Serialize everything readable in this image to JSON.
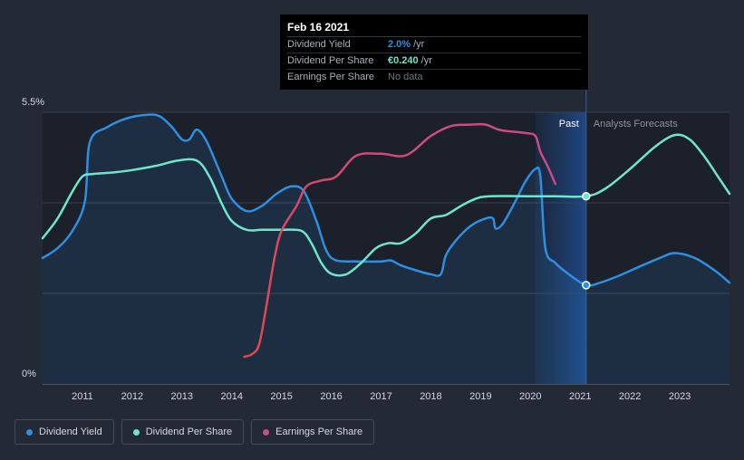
{
  "tooltip": {
    "date": "Feb 16 2021",
    "rows": [
      {
        "label": "Dividend Yield",
        "value": "2.0%",
        "unit": "/yr",
        "color": "#2e8fe0"
      },
      {
        "label": "Dividend Per Share",
        "value": "€0.240",
        "unit": "/yr",
        "color": "#6ee5cc"
      },
      {
        "label": "Earnings Per Share",
        "value": "No data",
        "unit": "",
        "color": "#6d7480"
      }
    ]
  },
  "regions": {
    "past": "Past",
    "forecast": "Analysts Forecasts"
  },
  "legend": [
    {
      "label": "Dividend Yield",
      "color": "#2e8fe0"
    },
    {
      "label": "Dividend Per Share",
      "color": "#6ee5cc"
    },
    {
      "label": "Earnings Per Share",
      "color": "#c94b8c"
    }
  ],
  "chart_data": {
    "type": "line",
    "title": "",
    "xlabel": "",
    "ylabel": "",
    "x_ticks": [
      "2011",
      "2012",
      "2013",
      "2014",
      "2015",
      "2016",
      "2017",
      "2018",
      "2019",
      "2020",
      "2021",
      "2022",
      "2023"
    ],
    "y_labels": [
      "5.5%",
      "0%"
    ],
    "xlim": [
      2010.2,
      2024.0
    ],
    "ylim": [
      0,
      5.5
    ],
    "past_start": 2020.1,
    "current": 2021.12,
    "series": [
      {
        "name": "Dividend Yield",
        "unit": "%",
        "color": "#2e8fe0",
        "area": true,
        "points": [
          [
            2010.2,
            2.55
          ],
          [
            2010.5,
            2.75
          ],
          [
            2010.8,
            3.1
          ],
          [
            2011.05,
            3.7
          ],
          [
            2011.15,
            4.9
          ],
          [
            2011.5,
            5.2
          ],
          [
            2011.9,
            5.38
          ],
          [
            2012.3,
            5.45
          ],
          [
            2012.55,
            5.42
          ],
          [
            2012.8,
            5.2
          ],
          [
            2013.0,
            4.95
          ],
          [
            2013.15,
            4.95
          ],
          [
            2013.3,
            5.15
          ],
          [
            2013.5,
            4.9
          ],
          [
            2013.8,
            4.2
          ],
          [
            2014.0,
            3.75
          ],
          [
            2014.3,
            3.5
          ],
          [
            2014.6,
            3.6
          ],
          [
            2014.9,
            3.85
          ],
          [
            2015.2,
            4.0
          ],
          [
            2015.45,
            3.9
          ],
          [
            2015.7,
            3.3
          ],
          [
            2015.9,
            2.7
          ],
          [
            2016.1,
            2.5
          ],
          [
            2016.5,
            2.48
          ],
          [
            2017.0,
            2.48
          ],
          [
            2017.2,
            2.5
          ],
          [
            2017.4,
            2.4
          ],
          [
            2017.7,
            2.3
          ],
          [
            2018.0,
            2.22
          ],
          [
            2018.2,
            2.22
          ],
          [
            2018.3,
            2.6
          ],
          [
            2018.5,
            2.9
          ],
          [
            2018.8,
            3.2
          ],
          [
            2019.1,
            3.35
          ],
          [
            2019.25,
            3.35
          ],
          [
            2019.3,
            3.15
          ],
          [
            2019.45,
            3.25
          ],
          [
            2019.7,
            3.7
          ],
          [
            2019.9,
            4.1
          ],
          [
            2020.1,
            4.35
          ],
          [
            2020.2,
            4.2
          ],
          [
            2020.3,
            2.75
          ],
          [
            2020.5,
            2.45
          ],
          [
            2020.8,
            2.2
          ],
          [
            2021.12,
            2.0
          ],
          [
            2021.4,
            2.05
          ],
          [
            2021.8,
            2.2
          ],
          [
            2022.2,
            2.38
          ],
          [
            2022.6,
            2.55
          ],
          [
            2022.9,
            2.65
          ],
          [
            2023.3,
            2.55
          ],
          [
            2023.7,
            2.3
          ],
          [
            2024.0,
            2.05
          ]
        ]
      },
      {
        "name": "Dividend Per Share",
        "unit": "€",
        "color": "#6ee5cc",
        "area": false,
        "points": [
          [
            2010.2,
            2.95
          ],
          [
            2010.5,
            3.35
          ],
          [
            2010.8,
            3.9
          ],
          [
            2011.0,
            4.2
          ],
          [
            2011.2,
            4.25
          ],
          [
            2011.6,
            4.28
          ],
          [
            2012.0,
            4.33
          ],
          [
            2012.5,
            4.42
          ],
          [
            2012.9,
            4.52
          ],
          [
            2013.3,
            4.52
          ],
          [
            2013.55,
            4.2
          ],
          [
            2013.8,
            3.65
          ],
          [
            2014.0,
            3.3
          ],
          [
            2014.3,
            3.12
          ],
          [
            2014.6,
            3.12
          ],
          [
            2015.0,
            3.12
          ],
          [
            2015.4,
            3.1
          ],
          [
            2015.6,
            2.85
          ],
          [
            2015.8,
            2.45
          ],
          [
            2016.0,
            2.23
          ],
          [
            2016.3,
            2.22
          ],
          [
            2016.6,
            2.45
          ],
          [
            2016.9,
            2.75
          ],
          [
            2017.15,
            2.85
          ],
          [
            2017.4,
            2.85
          ],
          [
            2017.7,
            3.05
          ],
          [
            2018.0,
            3.35
          ],
          [
            2018.3,
            3.42
          ],
          [
            2018.6,
            3.6
          ],
          [
            2018.9,
            3.75
          ],
          [
            2019.2,
            3.8
          ],
          [
            2020.0,
            3.8
          ],
          [
            2020.5,
            3.8
          ],
          [
            2021.12,
            3.8
          ],
          [
            2021.5,
            3.95
          ],
          [
            2022.0,
            4.35
          ],
          [
            2022.5,
            4.8
          ],
          [
            2022.9,
            5.04
          ],
          [
            2023.2,
            4.95
          ],
          [
            2023.5,
            4.6
          ],
          [
            2023.8,
            4.15
          ],
          [
            2024.0,
            3.85
          ]
        ]
      },
      {
        "name": "Earnings Per Share",
        "unit": "€",
        "color_start": "#e2474e",
        "color_end": "#c94b8c",
        "area": false,
        "points": [
          [
            2014.25,
            0.55
          ],
          [
            2014.4,
            0.6
          ],
          [
            2014.55,
            0.8
          ],
          [
            2014.7,
            1.6
          ],
          [
            2014.85,
            2.5
          ],
          [
            2015.0,
            3.1
          ],
          [
            2015.3,
            3.6
          ],
          [
            2015.5,
            4.0
          ],
          [
            2015.8,
            4.12
          ],
          [
            2016.1,
            4.2
          ],
          [
            2016.5,
            4.62
          ],
          [
            2017.0,
            4.66
          ],
          [
            2017.5,
            4.63
          ],
          [
            2018.0,
            5.02
          ],
          [
            2018.4,
            5.22
          ],
          [
            2018.8,
            5.25
          ],
          [
            2019.1,
            5.25
          ],
          [
            2019.4,
            5.14
          ],
          [
            2019.9,
            5.08
          ],
          [
            2020.1,
            5.02
          ],
          [
            2020.2,
            4.7
          ],
          [
            2020.35,
            4.4
          ],
          [
            2020.5,
            4.05
          ]
        ]
      }
    ],
    "markers": [
      {
        "series": "Dividend Yield",
        "x": 2021.12,
        "y": 2.0
      },
      {
        "series": "Dividend Per Share",
        "x": 2021.12,
        "y": 3.8
      }
    ]
  }
}
